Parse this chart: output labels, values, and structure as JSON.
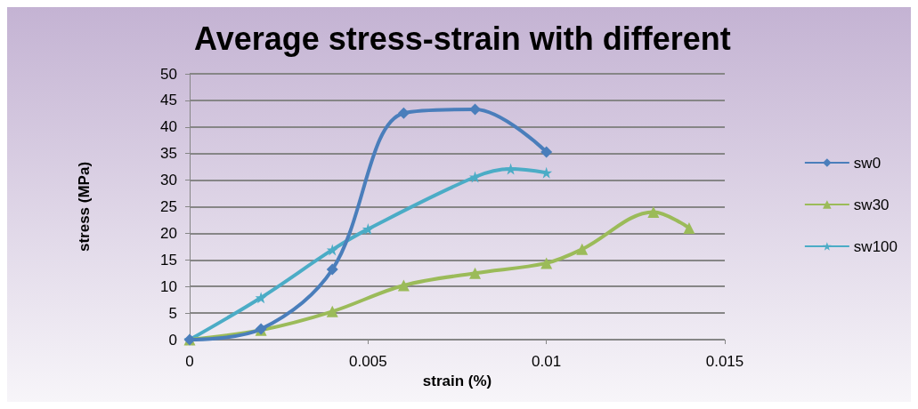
{
  "chart_data": {
    "type": "line",
    "title": "Average stress-strain with different",
    "xlabel": "strain (%)",
    "ylabel": "stress (MPa)",
    "xlim": [
      0,
      0.015
    ],
    "xticks": [
      0,
      0.005,
      0.01,
      0.015
    ],
    "ylim": [
      0,
      50
    ],
    "yticks": [
      0,
      5,
      10,
      15,
      20,
      25,
      30,
      35,
      40,
      45,
      50
    ],
    "grid": "y",
    "legend": "right",
    "series": [
      {
        "name": "sw0",
        "color": "#4a7ebb",
        "marker": "diamond",
        "x": [
          0,
          0.002,
          0.004,
          0.006,
          0.008,
          0.01
        ],
        "values": [
          0,
          2,
          13.2,
          42.6,
          43.3,
          35.3
        ]
      },
      {
        "name": "sw30",
        "color": "#9bbb59",
        "marker": "triangle",
        "x": [
          0,
          0.002,
          0.004,
          0.006,
          0.008,
          0.01,
          0.011,
          0.013,
          0.014
        ],
        "values": [
          0,
          1.8,
          5.3,
          10.2,
          12.5,
          14.4,
          17,
          24,
          21
        ]
      },
      {
        "name": "sw100",
        "color": "#4bacc6",
        "marker": "star",
        "x": [
          0,
          0.002,
          0.004,
          0.005,
          0.008,
          0.009,
          0.01
        ],
        "values": [
          0,
          7.9,
          16.9,
          20.8,
          30.6,
          32.1,
          31.4
        ]
      }
    ]
  }
}
